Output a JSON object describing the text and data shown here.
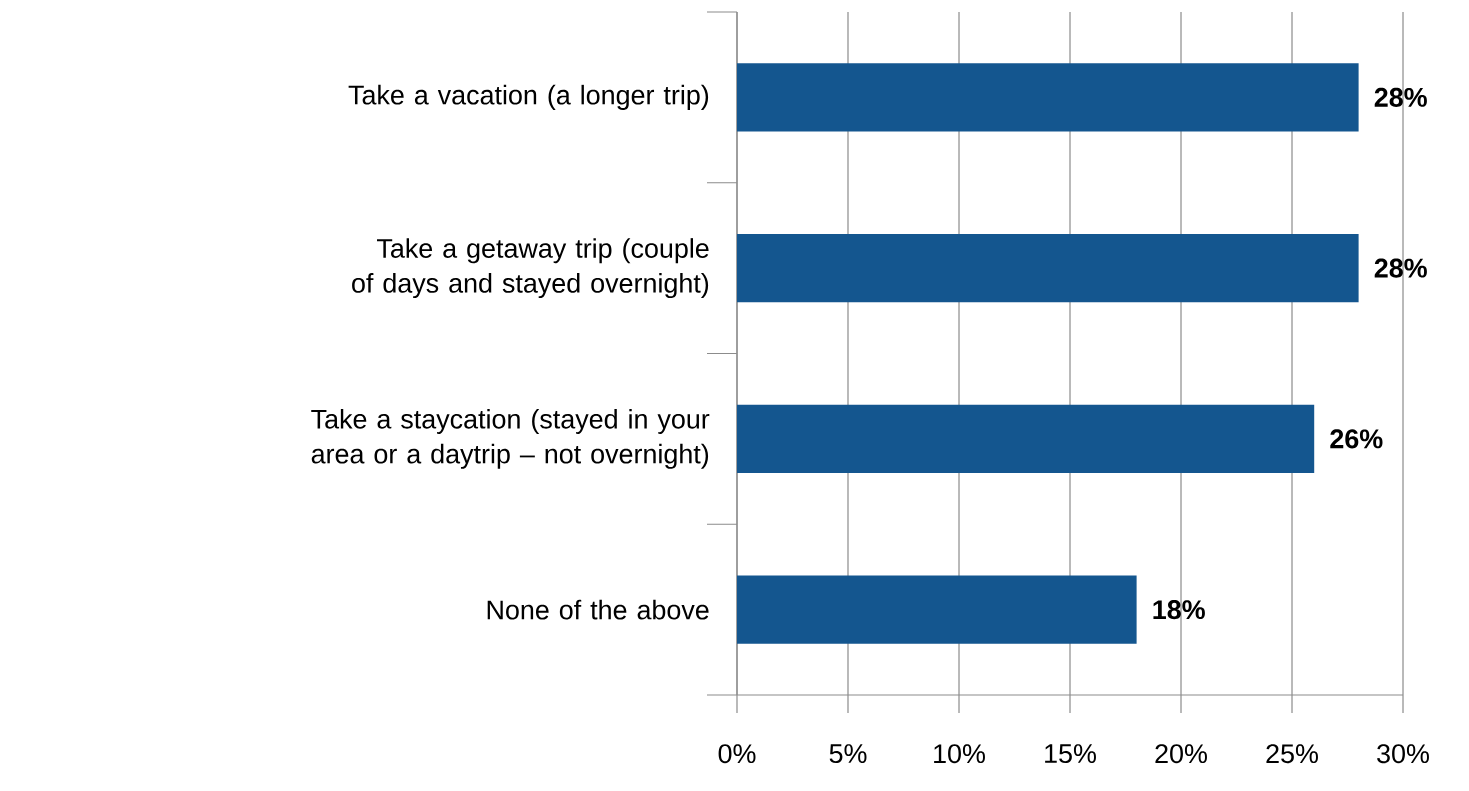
{
  "chart_data": {
    "type": "bar",
    "orientation": "horizontal",
    "categories": [
      "Take a vacation (a longer trip)",
      "Take a getaway trip (couple of days and stayed overnight)",
      "Take a staycation (stayed in your area or a daytrip – not overnight)",
      "None of the above"
    ],
    "values": [
      28,
      28,
      26,
      18
    ],
    "value_labels": [
      "28%",
      "28%",
      "26%",
      "18%"
    ],
    "color": "#14568f",
    "xlim": [
      0,
      30
    ],
    "xticks": [
      {
        "value": 0,
        "label": "0%"
      },
      {
        "value": 5,
        "label": "5%"
      },
      {
        "value": 10,
        "label": "10%"
      },
      {
        "value": 15,
        "label": "15%"
      },
      {
        "value": 20,
        "label": "20%"
      },
      {
        "value": 25,
        "label": "25%"
      },
      {
        "value": 30,
        "label": "30%"
      }
    ],
    "grid": "x"
  }
}
